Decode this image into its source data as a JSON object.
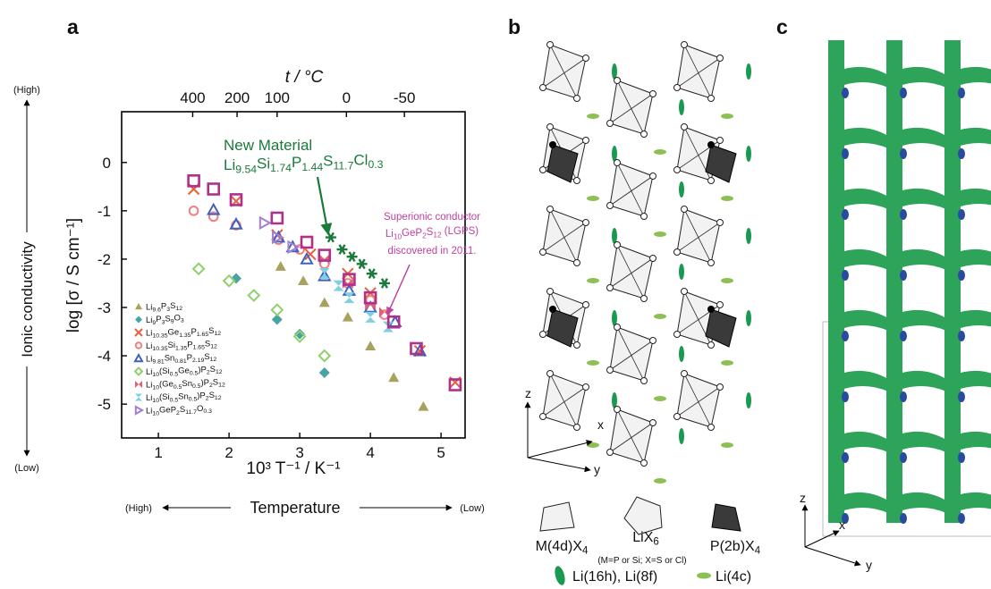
{
  "chart_data": {
    "type": "scatter",
    "xlabel": "10³ T⁻¹ / K⁻¹",
    "ylabel": "log [σ / S cm⁻¹]",
    "x2label": "t / °C",
    "xlim": [
      0.48,
      5.34
    ],
    "ylim": [
      -5.7,
      1.05
    ],
    "xticks": [
      1,
      2,
      3,
      4,
      5
    ],
    "yticks": [
      0,
      -1,
      -2,
      -3,
      -4,
      -5
    ],
    "x2ticks": [
      400,
      200,
      100,
      0,
      -50
    ],
    "legend": "lower left",
    "series": [
      {
        "name": "Li9.6P3S12",
        "color": "#a9a15e",
        "marker": "triangle",
        "x": [
          2.73,
          3.05,
          3.35,
          3.68,
          4.0,
          4.33,
          4.75
        ],
        "values": [
          -2.15,
          -2.45,
          -2.9,
          -3.2,
          -3.8,
          -4.45,
          -5.05
        ]
      },
      {
        "name": "Li9P3S9O3",
        "color": "#4aa3a3",
        "marker": "diamond",
        "x": [
          2.1,
          2.68,
          3.0,
          3.35
        ],
        "values": [
          -2.4,
          -3.25,
          -3.55,
          -4.35
        ]
      },
      {
        "name": "Li10.35Ge1.35P1.65S12",
        "color": "#e8603c",
        "marker": "x",
        "x": [
          1.5,
          2.1,
          2.68,
          3.15,
          3.68,
          4.0,
          4.7,
          5.2
        ],
        "values": [
          -0.55,
          -0.8,
          -1.5,
          -1.9,
          -2.3,
          -2.7,
          -3.9,
          -4.55
        ]
      },
      {
        "name": "Li10.35Si1.35P1.65S12",
        "color": "#f08080",
        "marker": "circle",
        "x": [
          1.5,
          1.78,
          2.1,
          2.7,
          3.0,
          3.35,
          3.68,
          4.0,
          4.2
        ],
        "values": [
          -1.0,
          -1.12,
          -1.3,
          -1.6,
          -1.8,
          -2.1,
          -2.5,
          -2.85,
          -3.15
        ]
      },
      {
        "name": "Li9.81Sn0.81P2.19S12",
        "color": "#4060c0",
        "marker": "triangle-open",
        "x": [
          1.78,
          2.1,
          2.7,
          2.9,
          3.1,
          3.35,
          3.7,
          4.0,
          4.35,
          4.7
        ],
        "values": [
          -0.98,
          -1.28,
          -1.55,
          -1.75,
          -2.0,
          -2.35,
          -2.65,
          -3.0,
          -3.3,
          -3.9
        ]
      },
      {
        "name": "Li10(Si0.5Ge0.5)P2S12",
        "color": "#8fd06c",
        "marker": "diamond-open",
        "x": [
          1.57,
          2.0,
          2.35,
          2.68,
          3.0,
          3.35
        ],
        "values": [
          -2.2,
          -2.45,
          -2.75,
          -3.05,
          -3.6,
          -4.0
        ]
      },
      {
        "name": "Li10(Ge0.5Sn0.5)P2S12",
        "color": "#e0607a",
        "marker": "bowtie",
        "x": [
          3.35,
          3.68,
          4.0,
          4.2
        ],
        "values": [
          -2.0,
          -2.5,
          -2.95,
          -3.1
        ]
      },
      {
        "name": "Li10(Si0.5Sn0.5)P2S12",
        "color": "#7fd0e0",
        "marker": "hourglass",
        "x": [
          3.35,
          3.55,
          3.7,
          4.0,
          4.25
        ],
        "values": [
          -2.3,
          -2.55,
          -2.8,
          -3.2,
          -3.4
        ]
      },
      {
        "name": "Li10GeP2S11.7O0.3",
        "color": "#a080d0",
        "marker": "triangle-right-open",
        "x": [
          2.5,
          2.68,
          2.9
        ],
        "values": [
          -1.25,
          -1.55,
          -1.75
        ]
      },
      {
        "color": "#1a7a3a",
        "marker": "asterisk",
        "x": [
          3.44,
          3.6,
          3.74,
          3.88,
          4.02,
          4.2
        ],
        "values": [
          -1.55,
          -1.8,
          -1.95,
          -2.1,
          -2.3,
          -2.5
        ]
      },
      {
        "color": "#b0308a",
        "marker": "square-open",
        "x": [
          1.5,
          1.78,
          2.1,
          2.68,
          3.1,
          3.35,
          3.7,
          4.0,
          4.33,
          4.65,
          5.2
        ],
        "values": [
          -0.38,
          -0.55,
          -0.77,
          -1.15,
          -1.65,
          -1.92,
          -2.42,
          -2.8,
          -3.3,
          -3.85,
          -4.6
        ]
      }
    ],
    "annotations": [
      {
        "text": "New Material",
        "color": "#1a7a3a"
      },
      {
        "text": "Li9.54Si1.74P1.44S11.7Cl0.3",
        "color": "#1a7a3a"
      },
      {
        "text": "Superionic conductor",
        "color": "#c040a0"
      },
      {
        "text": "Li10GeP2S12 (LGPS)",
        "color": "#c040a0"
      },
      {
        "text": "discovered in 2011.",
        "color": "#c040a0"
      }
    ]
  },
  "figure": {
    "panel_labels": [
      "a",
      "b",
      "c"
    ],
    "conductivity_axis": {
      "high": "(High)",
      "label": "Ionic conductivity",
      "low": "(Low)"
    },
    "temperature_axis": {
      "high": "(High)",
      "label": "Temperature",
      "low": "(Low)"
    },
    "panel_b": {
      "axes": [
        "z",
        "x",
        "y"
      ],
      "legend": [
        "M(4d)X4",
        "LiX6",
        "P(2b)X4",
        "(M=P or Si; X=S or Cl)",
        "Li(16h), Li(8f)",
        "Li(4c)"
      ]
    },
    "panel_c": {
      "axes": [
        "z",
        "x",
        "y"
      ]
    }
  }
}
